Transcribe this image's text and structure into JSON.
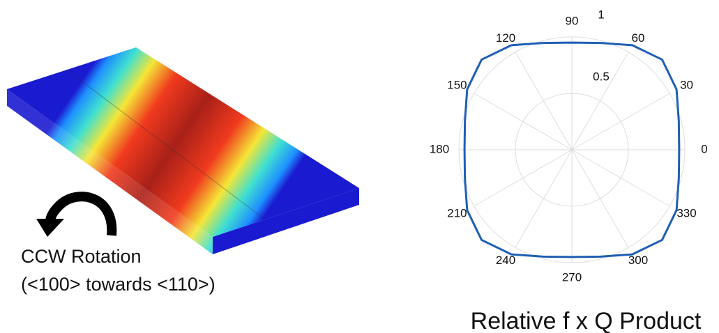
{
  "chart_data": {
    "type": "polar",
    "title": "Relative f x Q Product",
    "annotations": [
      "CCW Rotation",
      "(<100> towards <110>)"
    ],
    "theta": [
      0,
      15,
      30,
      45,
      60,
      75,
      90,
      105,
      120,
      135,
      150,
      165,
      180,
      195,
      210,
      225,
      240,
      255,
      270,
      285,
      300,
      315,
      330,
      345
    ],
    "series": [
      {
        "name": "Relative f x Q Product",
        "color": "#1f5fb4",
        "values": [
          0.95,
          0.98,
          1.07,
          1.13,
          1.07,
          0.98,
          0.95,
          0.98,
          1.07,
          1.13,
          1.07,
          0.98,
          0.95,
          0.98,
          1.07,
          1.13,
          1.07,
          0.98,
          0.95,
          0.98,
          1.07,
          1.13,
          1.07,
          0.98
        ]
      }
    ],
    "rlim": [
      0,
      1
    ],
    "rticks": [
      0.5,
      1
    ],
    "thetaticks": [
      0,
      30,
      60,
      90,
      120,
      150,
      180,
      210,
      240,
      270,
      300,
      330
    ],
    "grid": true
  }
}
